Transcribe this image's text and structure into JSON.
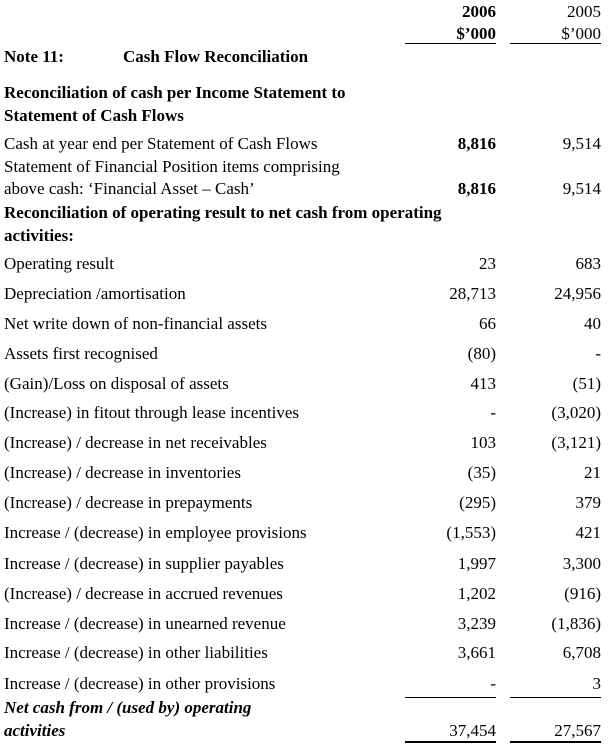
{
  "header": {
    "year_current": "2006",
    "year_prior": "2005",
    "unit_current": "$’000",
    "unit_prior": "$’000"
  },
  "note": {
    "number": "Note 11:",
    "title": "Cash Flow Reconciliation"
  },
  "section1": {
    "heading_line1": "Reconciliation of cash per Income Statement to",
    "heading_line2": "Statement of Cash Flows",
    "rows": [
      {
        "label": "Cash at year end per Statement of Cash Flows",
        "v2006": "8,816",
        "v2005": "9,514"
      },
      {
        "label_line1": "Statement of Financial Position items comprising",
        "label": "above cash:  ‘Financial Asset – Cash’",
        "v2006": "8,816",
        "v2005": "9,514"
      }
    ]
  },
  "section2": {
    "heading_line1": "Reconciliation of operating result to net cash from operating",
    "heading_line2": "activities:",
    "rows": [
      {
        "label": "Operating result",
        "v2006": "23",
        "v2005": "683"
      },
      {
        "label": "Depreciation /amortisation",
        "v2006": "28,713",
        "v2005": "24,956"
      },
      {
        "label": "Net write down of non-financial assets",
        "v2006": "66",
        "v2005": "40"
      },
      {
        "label": "Assets first recognised",
        "v2006": "(80)",
        "v2005": "-"
      },
      {
        "label": "(Gain)/Loss on disposal of assets",
        "v2006": "413",
        "v2005": "(51)"
      },
      {
        "label": "(Increase) in fitout through lease incentives",
        "v2006": "-",
        "v2005": "(3,020)"
      },
      {
        "label": "(Increase) / decrease in net receivables",
        "v2006": "103",
        "v2005": "(3,121)"
      },
      {
        "label": "(Increase) / decrease in inventories",
        "v2006": "(35)",
        "v2005": "21"
      },
      {
        "label": "(Increase) / decrease in prepayments",
        "v2006": "(295)",
        "v2005": "379"
      },
      {
        "label": "Increase / (decrease) in employee provisions",
        "v2006": "(1,553)",
        "v2005": "421"
      },
      {
        "label": "Increase / (decrease) in supplier payables",
        "v2006": "1,997",
        "v2005": "3,300"
      },
      {
        "label": "(Increase) / decrease in accrued revenues",
        "v2006": "1,202",
        "v2005": "(916)"
      },
      {
        "label": "Increase / (decrease) in unearned revenue",
        "v2006": "3,239",
        "v2005": "(1,836)"
      },
      {
        "label": "Increase / (decrease) in other liabilities",
        "v2006": "3,661",
        "v2005": "6,708"
      },
      {
        "label": "Increase / (decrease) in other provisions",
        "v2006": "-",
        "v2005": "3"
      }
    ],
    "total": {
      "label_line1": "Net cash from / (used by) operating",
      "label_line2": "activities",
      "v2006": "37,454",
      "v2005": "27,567"
    }
  }
}
